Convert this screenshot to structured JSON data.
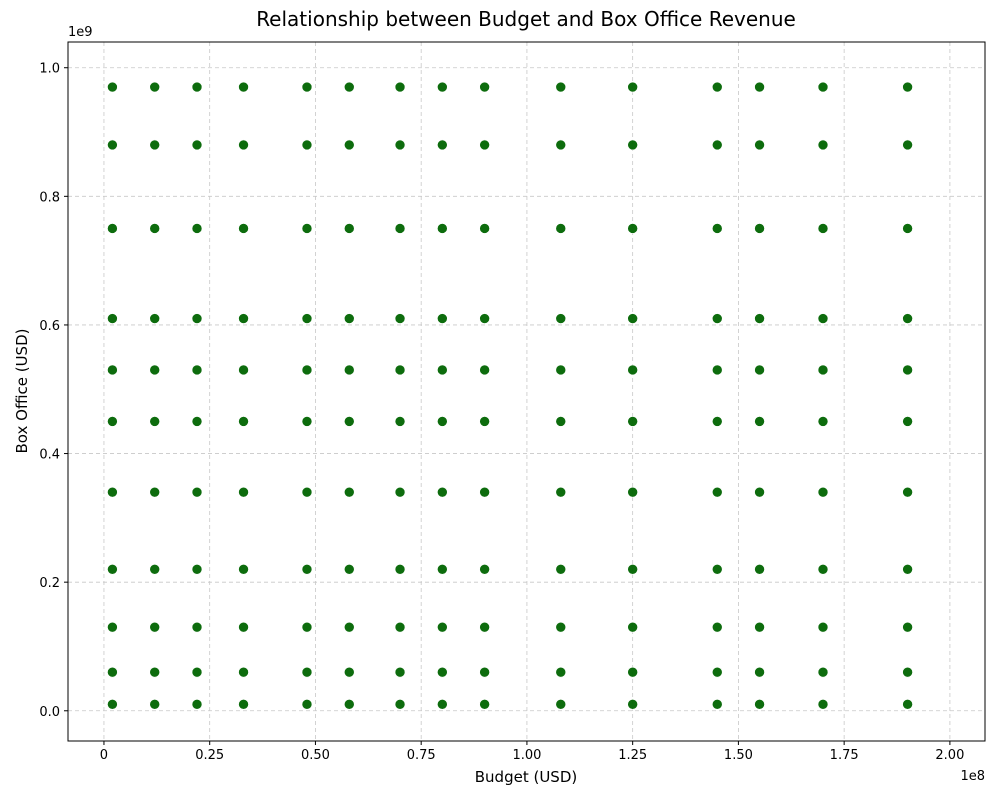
{
  "chart_data": {
    "type": "scatter",
    "title": "Relationship between Budget and Box Office Revenue",
    "x_label": "Budget (USD)",
    "y_label": "Box Office (USD)",
    "x_offset_label": "1e8",
    "y_offset_label": "1e9",
    "color": "#006400",
    "grid": true,
    "xlim": [
      -8500000,
      208300000
    ],
    "ylim": [
      -47000000,
      1040000000
    ],
    "xticks": [
      0,
      {
        "value": 25000000,
        "label": "0.25"
      },
      {
        "value": 50000000,
        "label": "0.50"
      },
      {
        "value": 75000000,
        "label": "0.75"
      },
      {
        "value": 100000000,
        "label": "1.00"
      },
      {
        "value": 125000000,
        "label": "1.25"
      },
      {
        "value": 150000000,
        "label": "1.50"
      },
      {
        "value": 175000000,
        "label": "1.75"
      },
      {
        "value": 200000000,
        "label": "2.00"
      }
    ],
    "yticks": [
      {
        "value": 0,
        "label": "0.0"
      },
      {
        "value": 200000000,
        "label": "0.2"
      },
      {
        "value": 400000000,
        "label": "0.4"
      },
      {
        "value": 600000000,
        "label": "0.6"
      },
      {
        "value": 800000000,
        "label": "0.8"
      },
      {
        "value": 1000000000,
        "label": "1.0"
      }
    ],
    "x": [
      2000000,
      12000000,
      22000000,
      33000000,
      48000000,
      58000000,
      70000000,
      80000000,
      90000000,
      108000000,
      125000000,
      145000000,
      155000000,
      170000000,
      190000000,
      2000000,
      12000000,
      22000000,
      33000000,
      48000000,
      58000000,
      70000000,
      80000000,
      90000000,
      108000000,
      125000000,
      145000000,
      155000000,
      170000000,
      190000000,
      2000000,
      12000000,
      22000000,
      33000000,
      48000000,
      58000000,
      70000000,
      80000000,
      90000000,
      108000000,
      125000000,
      145000000,
      155000000,
      170000000,
      190000000,
      2000000,
      12000000,
      22000000,
      33000000,
      48000000,
      58000000,
      70000000,
      80000000,
      90000000,
      108000000,
      125000000,
      145000000,
      155000000,
      170000000,
      190000000,
      2000000,
      12000000,
      22000000,
      33000000,
      48000000,
      58000000,
      70000000,
      80000000,
      90000000,
      108000000,
      125000000,
      145000000,
      155000000,
      170000000,
      190000000,
      2000000,
      12000000,
      22000000,
      33000000,
      48000000,
      58000000,
      70000000,
      80000000,
      90000000,
      108000000,
      125000000,
      145000000,
      155000000,
      170000000,
      190000000,
      2000000,
      12000000,
      22000000,
      33000000,
      48000000,
      58000000,
      70000000,
      80000000,
      90000000,
      108000000,
      125000000,
      145000000,
      155000000,
      170000000,
      190000000,
      2000000,
      12000000,
      22000000,
      33000000,
      48000000,
      58000000,
      70000000,
      80000000,
      90000000,
      108000000,
      125000000,
      145000000,
      155000000,
      170000000,
      190000000,
      2000000,
      12000000,
      22000000,
      33000000,
      48000000,
      58000000,
      70000000,
      80000000,
      90000000,
      108000000,
      125000000,
      145000000,
      155000000,
      170000000,
      190000000,
      2000000,
      12000000,
      22000000,
      33000000,
      48000000,
      58000000,
      70000000,
      80000000,
      90000000,
      108000000,
      125000000,
      145000000,
      155000000,
      170000000,
      190000000,
      2000000,
      12000000,
      22000000,
      33000000,
      48000000,
      58000000,
      70000000,
      80000000,
      90000000,
      108000000,
      125000000,
      145000000,
      155000000,
      170000000,
      190000000
    ],
    "values": [
      10000000,
      10000000,
      10000000,
      10000000,
      10000000,
      10000000,
      10000000,
      10000000,
      10000000,
      10000000,
      10000000,
      10000000,
      10000000,
      10000000,
      10000000,
      60000000,
      60000000,
      60000000,
      60000000,
      60000000,
      60000000,
      60000000,
      60000000,
      60000000,
      60000000,
      60000000,
      60000000,
      60000000,
      60000000,
      60000000,
      130000000,
      130000000,
      130000000,
      130000000,
      130000000,
      130000000,
      130000000,
      130000000,
      130000000,
      130000000,
      130000000,
      130000000,
      130000000,
      130000000,
      130000000,
      220000000,
      220000000,
      220000000,
      220000000,
      220000000,
      220000000,
      220000000,
      220000000,
      220000000,
      220000000,
      220000000,
      220000000,
      220000000,
      220000000,
      220000000,
      340000000,
      340000000,
      340000000,
      340000000,
      340000000,
      340000000,
      340000000,
      340000000,
      340000000,
      340000000,
      340000000,
      340000000,
      340000000,
      340000000,
      340000000,
      450000000,
      450000000,
      450000000,
      450000000,
      450000000,
      450000000,
      450000000,
      450000000,
      450000000,
      450000000,
      450000000,
      450000000,
      450000000,
      450000000,
      450000000,
      530000000,
      530000000,
      530000000,
      530000000,
      530000000,
      530000000,
      530000000,
      530000000,
      530000000,
      530000000,
      530000000,
      530000000,
      530000000,
      530000000,
      530000000,
      610000000,
      610000000,
      610000000,
      610000000,
      610000000,
      610000000,
      610000000,
      610000000,
      610000000,
      610000000,
      610000000,
      610000000,
      610000000,
      610000000,
      610000000,
      750000000,
      750000000,
      750000000,
      750000000,
      750000000,
      750000000,
      750000000,
      750000000,
      750000000,
      750000000,
      750000000,
      750000000,
      750000000,
      750000000,
      750000000,
      880000000,
      880000000,
      880000000,
      880000000,
      880000000,
      880000000,
      880000000,
      880000000,
      880000000,
      880000000,
      880000000,
      880000000,
      880000000,
      880000000,
      880000000,
      970000000,
      970000000,
      970000000,
      970000000,
      970000000,
      970000000,
      970000000,
      970000000,
      970000000,
      970000000,
      970000000,
      970000000,
      970000000,
      970000000,
      970000000
    ]
  }
}
